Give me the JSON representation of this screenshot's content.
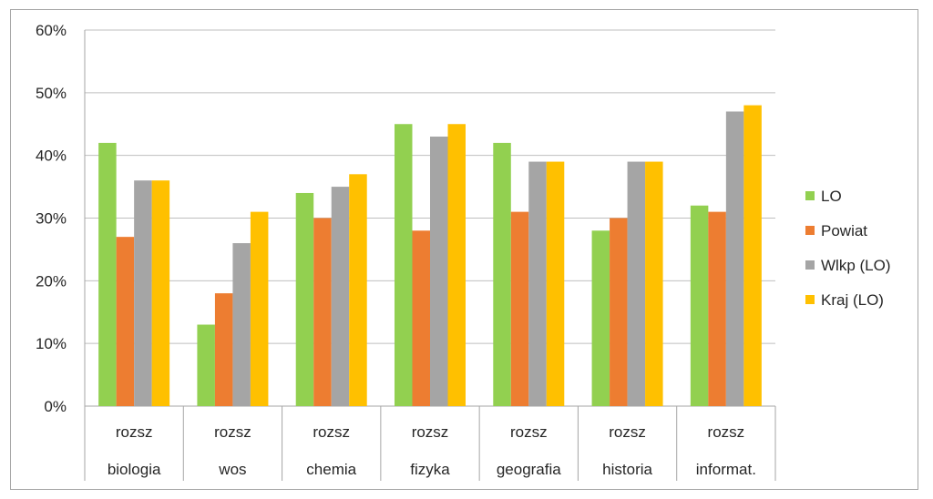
{
  "chart_data": {
    "type": "bar",
    "categories": [
      [
        "rozsz",
        "biologia"
      ],
      [
        "rozsz",
        "wos"
      ],
      [
        "rozsz",
        "chemia"
      ],
      [
        "rozsz",
        "fizyka"
      ],
      [
        "rozsz",
        "geografia"
      ],
      [
        "rozsz",
        "historia"
      ],
      [
        "rozsz",
        "informat."
      ]
    ],
    "series": [
      {
        "name": "LO",
        "color": "#92d050",
        "values": [
          42,
          13,
          34,
          45,
          42,
          28,
          32
        ]
      },
      {
        "name": "Powiat",
        "color": "#ed7d31",
        "values": [
          27,
          18,
          30,
          28,
          31,
          30,
          31
        ]
      },
      {
        "name": "Wlkp (LO)",
        "color": "#a5a5a5",
        "values": [
          36,
          26,
          35,
          43,
          39,
          39,
          47
        ]
      },
      {
        "name": "Kraj (LO)",
        "color": "#ffc000",
        "values": [
          36,
          31,
          37,
          45,
          39,
          39,
          48
        ]
      }
    ],
    "ylim": [
      0,
      60
    ],
    "yticks": [
      "0%",
      "10%",
      "20%",
      "30%",
      "40%",
      "50%",
      "60%"
    ],
    "grid": true,
    "legend": "right",
    "title": "",
    "xlabel": "",
    "ylabel": ""
  }
}
